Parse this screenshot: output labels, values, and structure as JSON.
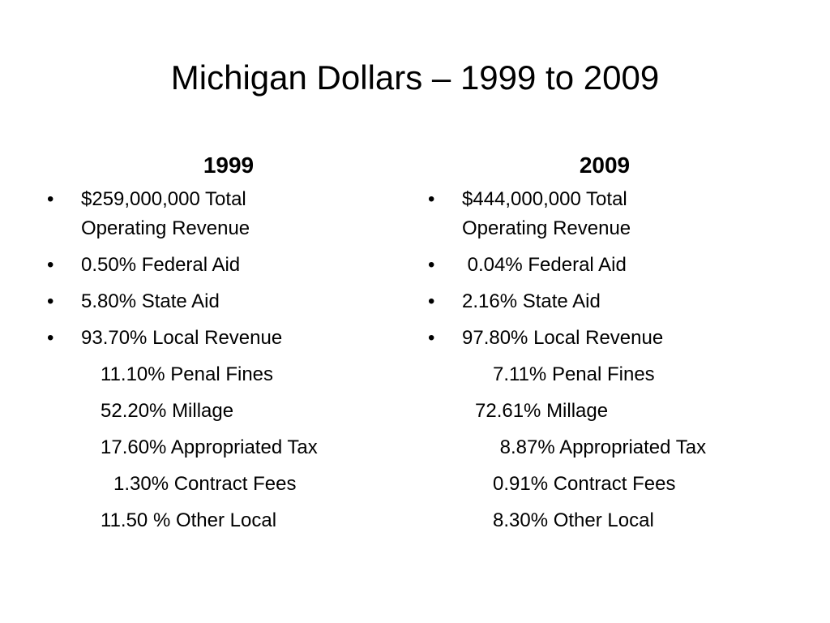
{
  "slide": {
    "title": "Michigan Dollars – 1999 to 2009"
  },
  "columns": [
    {
      "heading": "1999",
      "bullets": [
        "$259,000,000 Total Operating Revenue",
        "0.50% Federal Aid",
        "5.80% State Aid",
        "93.70% Local Revenue"
      ],
      "sub_items": [
        "11.10% Penal Fines",
        "52.20% Millage",
        "17.60% Appropriated Tax",
        "1.30% Contract Fees",
        "11.50 % Other Local"
      ]
    },
    {
      "heading": "2009",
      "bullets": [
        "$444,000,000 Total Operating Revenue",
        " 0.04% Federal Aid",
        "2.16% State Aid",
        "97.80% Local Revenue"
      ],
      "sub_items": [
        "7.11% Penal Fines",
        "72.61% Millage",
        " 8.87% Appropriated Tax",
        "0.91% Contract Fees",
        "8.30% Other Local"
      ]
    }
  ]
}
